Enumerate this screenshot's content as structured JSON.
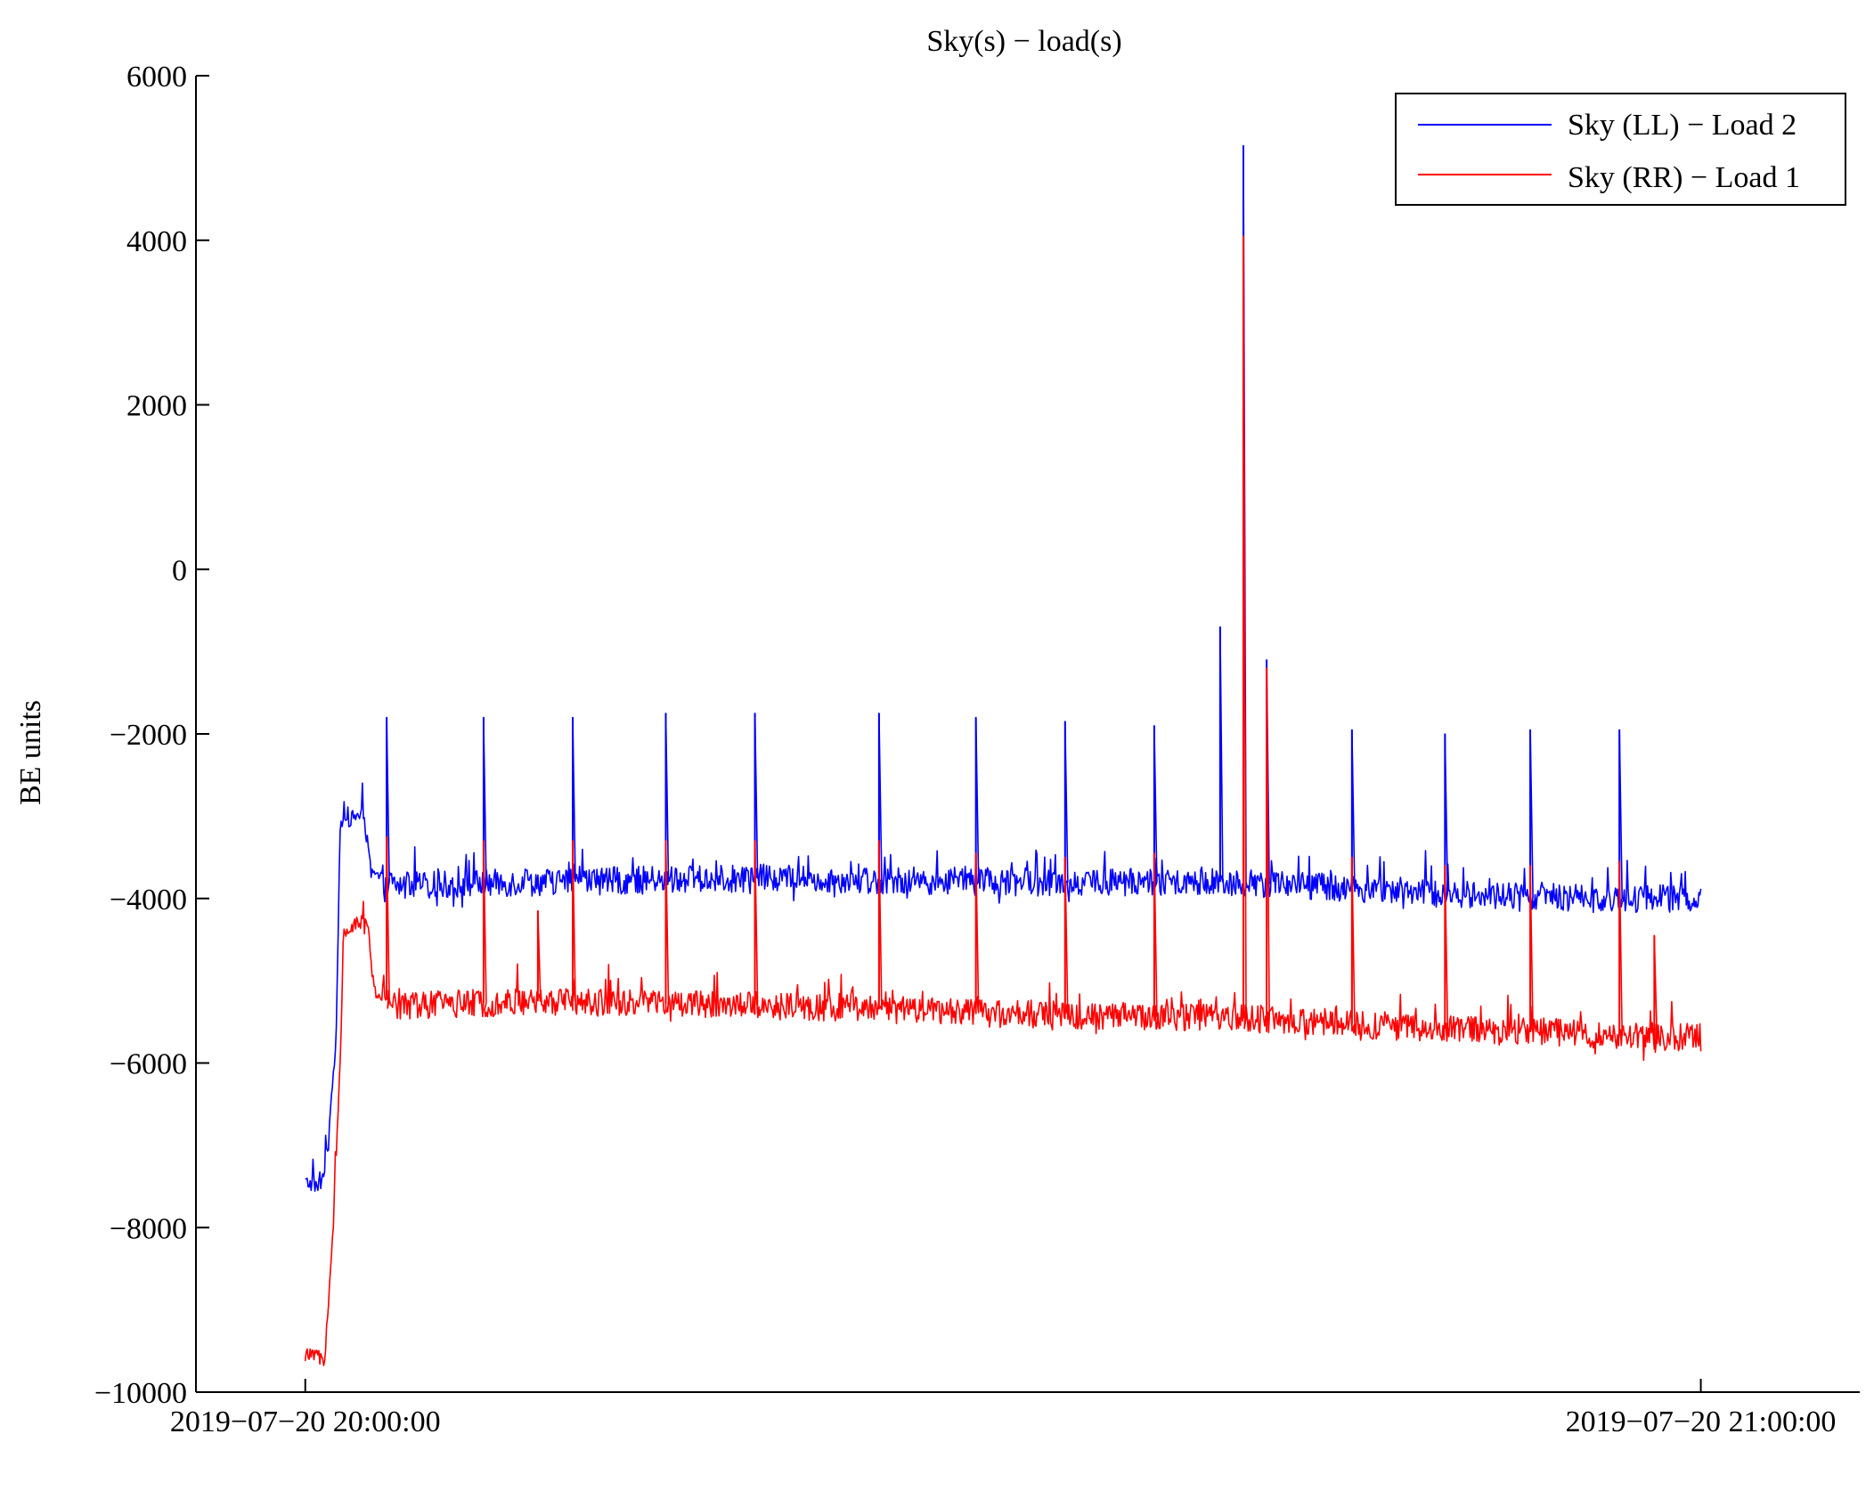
{
  "chart_data": {
    "type": "line",
    "title": "Sky(s) − load(s)",
    "xlabel": "",
    "ylabel": "BE units",
    "ylim": [
      -10000,
      6000
    ],
    "yticks": [
      6000,
      4000,
      2000,
      0,
      -2000,
      -4000,
      -6000,
      -8000,
      -10000
    ],
    "ytick_labels": [
      "6000",
      "4000",
      "2000",
      "0",
      "−2000",
      "−4000",
      "−6000",
      "−8000",
      "−10000"
    ],
    "xlim_minutes_label": [
      "2019−07−20 19:55:18",
      "2019−07−20 21:06:50"
    ],
    "xticks": [
      "2019-07-20 20:00:00",
      "2019-07-20 21:00:00"
    ],
    "xtick_labels": [
      "2019−07−20 20:00:00",
      "2019−07−20 21:00:00"
    ],
    "x_range": [
      "2019-07-20 19:55:18",
      "2019-07-20 21:06:50"
    ],
    "grid": false,
    "legend_position": "top-right",
    "series": [
      {
        "name": "Sky (LL) − Load 2",
        "color": "#0000ff",
        "baseline": [
          [
            "2019-07-20 20:00:00",
            -7450
          ],
          [
            "2019-07-20 20:00:40",
            -7500
          ],
          [
            "2019-07-20 20:01:00",
            -7000
          ],
          [
            "2019-07-20 20:01:20",
            -5600
          ],
          [
            "2019-07-20 20:01:30",
            -3100
          ],
          [
            "2019-07-20 20:02:30",
            -2950
          ],
          [
            "2019-07-20 20:02:50",
            -3700
          ],
          [
            "2019-07-20 20:04:00",
            -3850
          ],
          [
            "2019-07-20 20:10:00",
            -3800
          ],
          [
            "2019-07-20 20:20:00",
            -3750
          ],
          [
            "2019-07-20 20:30:00",
            -3800
          ],
          [
            "2019-07-20 20:40:00",
            -3800
          ],
          [
            "2019-07-20 20:50:00",
            -3950
          ],
          [
            "2019-07-20 20:55:00",
            -4000
          ],
          [
            "2019-07-20 21:00:00",
            -4000
          ]
        ],
        "spikes": [
          [
            "2019-07-20 20:03:30",
            -1800
          ],
          [
            "2019-07-20 20:07:40",
            -1800
          ],
          [
            "2019-07-20 20:11:30",
            -1800
          ],
          [
            "2019-07-20 20:15:30",
            -1750
          ],
          [
            "2019-07-20 20:19:20",
            -1750
          ],
          [
            "2019-07-20 20:24:40",
            -1750
          ],
          [
            "2019-07-20 20:28:50",
            -1800
          ],
          [
            "2019-07-20 20:32:40",
            -1850
          ],
          [
            "2019-07-20 20:36:30",
            -1900
          ],
          [
            "2019-07-20 20:39:20",
            -700
          ],
          [
            "2019-07-20 20:40:20",
            5150
          ],
          [
            "2019-07-20 20:41:20",
            -1100
          ],
          [
            "2019-07-20 20:45:00",
            -1950
          ],
          [
            "2019-07-20 20:49:00",
            -2000
          ],
          [
            "2019-07-20 20:52:40",
            -1950
          ],
          [
            "2019-07-20 20:56:30",
            -1950
          ]
        ]
      },
      {
        "name": "Sky (RR) − Load 1",
        "color": "#ff0000",
        "baseline": [
          [
            "2019-07-20 20:00:00",
            -9550
          ],
          [
            "2019-07-20 20:00:50",
            -9600
          ],
          [
            "2019-07-20 20:01:10",
            -8200
          ],
          [
            "2019-07-20 20:01:30",
            -6000
          ],
          [
            "2019-07-20 20:01:40",
            -4400
          ],
          [
            "2019-07-20 20:02:40",
            -4250
          ],
          [
            "2019-07-20 20:02:55",
            -5150
          ],
          [
            "2019-07-20 20:04:00",
            -5300
          ],
          [
            "2019-07-20 20:10:00",
            -5250
          ],
          [
            "2019-07-20 20:20:00",
            -5300
          ],
          [
            "2019-07-20 20:30:00",
            -5400
          ],
          [
            "2019-07-20 20:40:00",
            -5450
          ],
          [
            "2019-07-20 20:50:00",
            -5600
          ],
          [
            "2019-07-20 20:55:00",
            -5650
          ],
          [
            "2019-07-20 21:00:00",
            -5700
          ]
        ],
        "spikes": [
          [
            "2019-07-20 20:03:30",
            -3250
          ],
          [
            "2019-07-20 20:07:40",
            -3300
          ],
          [
            "2019-07-20 20:10:00",
            -4150
          ],
          [
            "2019-07-20 20:11:30",
            -3300
          ],
          [
            "2019-07-20 20:15:30",
            -3300
          ],
          [
            "2019-07-20 20:19:20",
            -3300
          ],
          [
            "2019-07-20 20:24:40",
            -3300
          ],
          [
            "2019-07-20 20:28:50",
            -3450
          ],
          [
            "2019-07-20 20:32:40",
            -3500
          ],
          [
            "2019-07-20 20:36:30",
            -3450
          ],
          [
            "2019-07-20 20:40:20",
            4050
          ],
          [
            "2019-07-20 20:41:20",
            -1200
          ],
          [
            "2019-07-20 20:45:00",
            -3500
          ],
          [
            "2019-07-20 20:49:00",
            -3600
          ],
          [
            "2019-07-20 20:52:40",
            -3600
          ],
          [
            "2019-07-20 20:56:30",
            -3550
          ],
          [
            "2019-07-20 20:58:00",
            -4450
          ]
        ]
      }
    ]
  }
}
